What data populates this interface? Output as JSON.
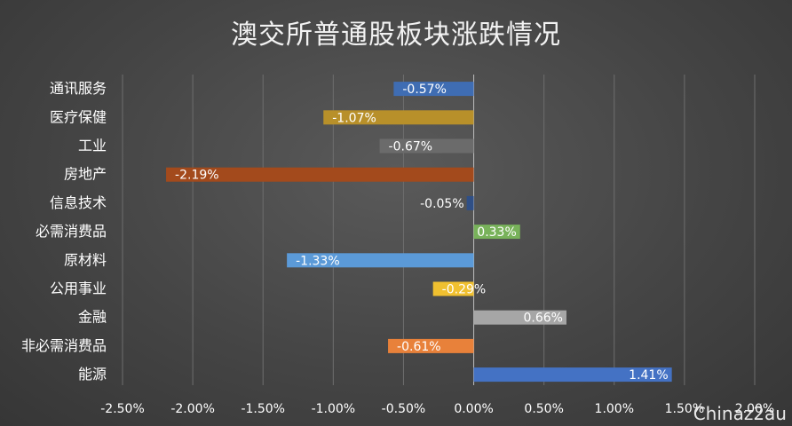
{
  "chart_data": {
    "type": "bar",
    "orientation": "horizontal",
    "title": "澳交所普通股板块涨跌情况",
    "categories": [
      "通讯服务",
      "医疗保健",
      "工业",
      "房地产",
      "信息技术",
      "必需消费品",
      "原材料",
      "公用事业",
      "金融",
      "非必需消费品",
      "能源"
    ],
    "values": [
      -0.57,
      -1.07,
      -0.67,
      -2.19,
      -0.05,
      0.33,
      -1.33,
      -0.29,
      0.66,
      -0.61,
      1.41
    ],
    "data_labels": [
      "-0.57%",
      "-1.07%",
      "-0.67%",
      "-2.19%",
      "-0.05%",
      "0.33%",
      "-1.33%",
      "-0.29%",
      "0.66%",
      "-0.61%",
      "1.41%"
    ],
    "colors": [
      "#3f6db3",
      "#b8902a",
      "#6b6b6b",
      "#a34a1c",
      "#2f4f86",
      "#78b25a",
      "#5b9ad8",
      "#f0c030",
      "#a6a6a6",
      "#e8813a",
      "#4472c4"
    ],
    "xlim": [
      -2.5,
      2.0
    ],
    "x_ticks": [
      -2.5,
      -2.0,
      -1.5,
      -1.0,
      -0.5,
      0.0,
      0.5,
      1.0,
      1.5,
      2.0
    ],
    "x_tick_labels": [
      "-2.50%",
      "-2.00%",
      "-1.50%",
      "-1.00%",
      "-0.50%",
      "0.00%",
      "0.50%",
      "1.00%",
      "1.50%",
      "2.00%"
    ],
    "grid": "vertical",
    "legend": "none"
  },
  "watermark": "Chinaz2au"
}
